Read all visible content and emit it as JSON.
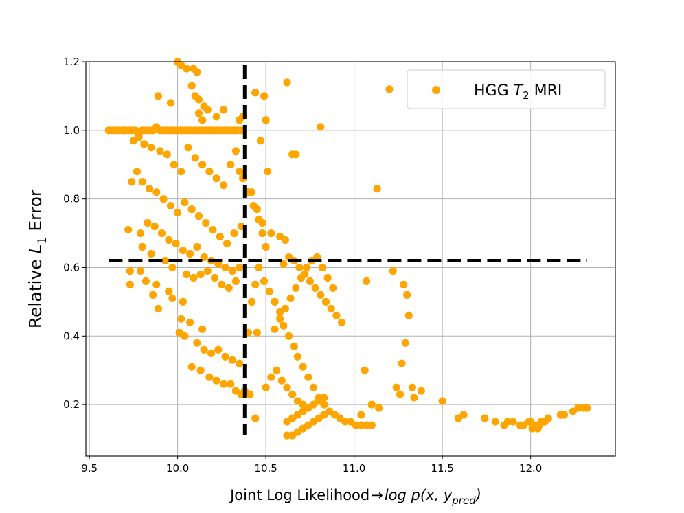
{
  "chart_data": {
    "type": "scatter",
    "xlabel_prefix": "Joint Log Likelihood",
    "xlabel_arrow": "→",
    "xlabel_expr": "log p(x, y",
    "xlabel_sub": "pred",
    "xlabel_close": ")",
    "ylabel_prefix": "Relative ",
    "ylabel_var": "L",
    "ylabel_sub": "1",
    "ylabel_suffix": " Error",
    "xlim": [
      9.48,
      12.48
    ],
    "ylim": [
      0.05,
      1.2
    ],
    "xticks": [
      "9.5",
      "10.0",
      "10.5",
      "11.0",
      "11.5",
      "12.0"
    ],
    "yticks": [
      "0.2",
      "0.4",
      "0.6",
      "0.8",
      "1.0",
      "1.2"
    ],
    "grid": true,
    "legend": {
      "label_prefix": "HGG ",
      "label_var": "T",
      "label_sub": "2",
      "label_suffix": " MRI",
      "location": "top-right"
    },
    "threshold_lines": [
      {
        "orientation": "vertical",
        "x": 10.38,
        "y_range": [
          0.11,
          1.19
        ]
      },
      {
        "orientation": "horizontal",
        "y": 0.62,
        "x_range": [
          9.61,
          12.32
        ]
      }
    ],
    "series": [
      {
        "name": "HGG T2 MRI",
        "color": "#FFA500",
        "points": [
          [
            9.61,
            1.0
          ],
          [
            9.63,
            1.0
          ],
          [
            9.65,
            1.0
          ],
          [
            9.67,
            1.0
          ],
          [
            9.69,
            1.0
          ],
          [
            9.7,
            1.0
          ],
          [
            9.72,
            1.0
          ],
          [
            9.74,
            1.0
          ],
          [
            9.76,
            1.0
          ],
          [
            9.78,
            0.99
          ],
          [
            9.8,
            1.0
          ],
          [
            9.82,
            1.0
          ],
          [
            9.84,
            1.0
          ],
          [
            9.86,
            1.0
          ],
          [
            9.88,
            1.01
          ],
          [
            9.9,
            1.0
          ],
          [
            9.92,
            1.0
          ],
          [
            9.94,
            1.0
          ],
          [
            9.96,
            1.0
          ],
          [
            9.98,
            1.0
          ],
          [
            10.0,
            1.0
          ],
          [
            10.02,
            1.0
          ],
          [
            10.04,
            1.0
          ],
          [
            10.06,
            1.0
          ],
          [
            10.08,
            1.0
          ],
          [
            10.1,
            1.0
          ],
          [
            10.12,
            1.0
          ],
          [
            10.14,
            1.0
          ],
          [
            10.16,
            1.0
          ],
          [
            10.18,
            1.0
          ],
          [
            10.2,
            1.0
          ],
          [
            10.22,
            1.0
          ],
          [
            10.24,
            1.0
          ],
          [
            10.26,
            1.0
          ],
          [
            10.28,
            1.0
          ],
          [
            10.3,
            1.0
          ],
          [
            10.32,
            1.0
          ],
          [
            10.34,
            1.0
          ],
          [
            10.36,
            1.0
          ],
          [
            10.0,
            1.2
          ],
          [
            10.02,
            1.19
          ],
          [
            10.05,
            1.18
          ],
          [
            10.09,
            1.18
          ],
          [
            10.11,
            1.17
          ],
          [
            10.08,
            1.13
          ],
          [
            10.1,
            1.1
          ],
          [
            10.12,
            1.09
          ],
          [
            10.15,
            1.07
          ],
          [
            10.12,
            1.05
          ],
          [
            10.14,
            1.03
          ],
          [
            10.17,
            1.06
          ],
          [
            10.22,
            1.04
          ],
          [
            10.26,
            1.06
          ],
          [
            10.35,
            1.03
          ],
          [
            10.37,
            1.04
          ],
          [
            10.44,
            1.11
          ],
          [
            10.49,
            1.1
          ],
          [
            10.62,
            1.14
          ],
          [
            10.5,
            1.03
          ],
          [
            10.47,
            0.97
          ],
          [
            10.51,
            0.88
          ],
          [
            10.65,
            0.93
          ],
          [
            9.89,
            1.1
          ],
          [
            9.96,
            1.08
          ],
          [
            9.78,
            0.98
          ],
          [
            9.75,
            0.97
          ],
          [
            9.81,
            0.96
          ],
          [
            9.85,
            0.95
          ],
          [
            9.9,
            0.94
          ],
          [
            9.94,
            0.93
          ],
          [
            9.98,
            0.9
          ],
          [
            10.02,
            0.88
          ],
          [
            10.06,
            0.95
          ],
          [
            10.1,
            0.92
          ],
          [
            10.14,
            0.9
          ],
          [
            10.18,
            0.88
          ],
          [
            10.22,
            0.86
          ],
          [
            10.26,
            0.84
          ],
          [
            10.3,
            0.9
          ],
          [
            10.33,
            0.94
          ],
          [
            10.35,
            0.88
          ],
          [
            10.37,
            0.86
          ],
          [
            10.4,
            0.82
          ],
          [
            10.43,
            0.78
          ],
          [
            10.46,
            0.74
          ],
          [
            10.48,
            0.7
          ],
          [
            10.5,
            0.66
          ],
          [
            9.74,
            0.85
          ],
          [
            9.77,
            0.88
          ],
          [
            9.8,
            0.85
          ],
          [
            9.84,
            0.83
          ],
          [
            9.88,
            0.82
          ],
          [
            9.92,
            0.8
          ],
          [
            9.96,
            0.78
          ],
          [
            10.0,
            0.76
          ],
          [
            10.04,
            0.79
          ],
          [
            10.08,
            0.77
          ],
          [
            10.12,
            0.75
          ],
          [
            10.16,
            0.73
          ],
          [
            10.2,
            0.71
          ],
          [
            10.24,
            0.69
          ],
          [
            10.28,
            0.67
          ],
          [
            10.32,
            0.7
          ],
          [
            10.36,
            0.72
          ],
          [
            9.72,
            0.71
          ],
          [
            9.79,
            0.7
          ],
          [
            9.83,
            0.73
          ],
          [
            9.87,
            0.72
          ],
          [
            9.91,
            0.7
          ],
          [
            9.95,
            0.68
          ],
          [
            9.99,
            0.67
          ],
          [
            10.03,
            0.65
          ],
          [
            10.07,
            0.64
          ],
          [
            10.11,
            0.66
          ],
          [
            10.15,
            0.63
          ],
          [
            10.19,
            0.62
          ],
          [
            10.23,
            0.61
          ],
          [
            10.27,
            0.6
          ],
          [
            10.31,
            0.59
          ],
          [
            10.35,
            0.6
          ],
          [
            9.8,
            0.66
          ],
          [
            9.85,
            0.64
          ],
          [
            9.93,
            0.62
          ],
          [
            9.97,
            0.6
          ],
          [
            10.05,
            0.58
          ],
          [
            10.09,
            0.57
          ],
          [
            10.13,
            0.58
          ],
          [
            10.17,
            0.59
          ],
          [
            10.21,
            0.57
          ],
          [
            10.25,
            0.55
          ],
          [
            10.29,
            0.54
          ],
          [
            10.33,
            0.56
          ],
          [
            9.73,
            0.59
          ],
          [
            9.79,
            0.59
          ],
          [
            9.73,
            0.55
          ],
          [
            9.82,
            0.56
          ],
          [
            9.88,
            0.55
          ],
          [
            9.95,
            0.53
          ],
          [
            9.86,
            0.52
          ],
          [
            9.97,
            0.51
          ],
          [
            10.03,
            0.5
          ],
          [
            9.89,
            0.48
          ],
          [
            10.02,
            0.45
          ],
          [
            10.07,
            0.44
          ],
          [
            10.14,
            0.42
          ],
          [
            10.01,
            0.41
          ],
          [
            10.04,
            0.4
          ],
          [
            10.11,
            0.38
          ],
          [
            10.15,
            0.36
          ],
          [
            10.19,
            0.35
          ],
          [
            10.23,
            0.36
          ],
          [
            10.27,
            0.34
          ],
          [
            10.31,
            0.33
          ],
          [
            10.35,
            0.32
          ],
          [
            10.08,
            0.31
          ],
          [
            10.13,
            0.3
          ],
          [
            10.18,
            0.28
          ],
          [
            10.22,
            0.27
          ],
          [
            10.26,
            0.26
          ],
          [
            10.3,
            0.26
          ],
          [
            10.33,
            0.24
          ],
          [
            10.36,
            0.23
          ],
          [
            10.38,
            0.24
          ],
          [
            10.41,
            0.23
          ],
          [
            10.44,
            0.16
          ],
          [
            10.4,
            0.41
          ],
          [
            10.45,
            0.41
          ],
          [
            10.42,
            0.5
          ],
          [
            10.44,
            0.55
          ],
          [
            10.46,
            0.6
          ],
          [
            10.49,
            0.56
          ],
          [
            10.52,
            0.53
          ],
          [
            10.55,
            0.5
          ],
          [
            10.58,
            0.47
          ],
          [
            10.6,
            0.43
          ],
          [
            10.63,
            0.4
          ],
          [
            10.66,
            0.37
          ],
          [
            10.68,
            0.34
          ],
          [
            10.71,
            0.31
          ],
          [
            10.74,
            0.28
          ],
          [
            10.77,
            0.25
          ],
          [
            10.8,
            0.22
          ],
          [
            10.83,
            0.2
          ],
          [
            10.86,
            0.18
          ],
          [
            10.89,
            0.17
          ],
          [
            10.92,
            0.16
          ],
          [
            10.95,
            0.15
          ],
          [
            10.98,
            0.15
          ],
          [
            11.01,
            0.14
          ],
          [
            11.04,
            0.14
          ],
          [
            11.07,
            0.14
          ],
          [
            11.1,
            0.14
          ],
          [
            10.62,
            0.11
          ],
          [
            10.65,
            0.11
          ],
          [
            10.68,
            0.12
          ],
          [
            10.71,
            0.13
          ],
          [
            10.74,
            0.14
          ],
          [
            10.77,
            0.15
          ],
          [
            10.8,
            0.16
          ],
          [
            10.83,
            0.17
          ],
          [
            10.86,
            0.18
          ],
          [
            10.62,
            0.15
          ],
          [
            10.65,
            0.16
          ],
          [
            10.68,
            0.17
          ],
          [
            10.71,
            0.18
          ],
          [
            10.74,
            0.19
          ],
          [
            10.77,
            0.2
          ],
          [
            10.8,
            0.21
          ],
          [
            10.83,
            0.22
          ],
          [
            10.5,
            0.25
          ],
          [
            10.53,
            0.28
          ],
          [
            10.56,
            0.3
          ],
          [
            10.59,
            0.27
          ],
          [
            10.62,
            0.25
          ],
          [
            10.65,
            0.23
          ],
          [
            10.68,
            0.21
          ],
          [
            10.71,
            0.2
          ],
          [
            10.74,
            0.19
          ],
          [
            10.55,
            0.42
          ],
          [
            10.58,
            0.45
          ],
          [
            10.61,
            0.48
          ],
          [
            10.64,
            0.51
          ],
          [
            10.67,
            0.54
          ],
          [
            10.7,
            0.57
          ],
          [
            10.73,
            0.6
          ],
          [
            10.76,
            0.62
          ],
          [
            10.79,
            0.63
          ],
          [
            10.82,
            0.6
          ],
          [
            10.85,
            0.57
          ],
          [
            10.88,
            0.54
          ],
          [
            10.6,
            0.61
          ],
          [
            10.63,
            0.63
          ],
          [
            10.66,
            0.62
          ],
          [
            10.69,
            0.6
          ],
          [
            10.72,
            0.58
          ],
          [
            10.75,
            0.56
          ],
          [
            10.78,
            0.54
          ],
          [
            10.81,
            0.52
          ],
          [
            10.84,
            0.5
          ],
          [
            10.87,
            0.48
          ],
          [
            10.9,
            0.46
          ],
          [
            10.93,
            0.44
          ],
          [
            10.42,
            0.82
          ],
          [
            10.45,
            0.77
          ],
          [
            10.48,
            0.73
          ],
          [
            10.53,
            0.7
          ],
          [
            10.58,
            0.69
          ],
          [
            10.61,
            0.68
          ],
          [
            10.67,
            0.93
          ],
          [
            10.81,
            1.01
          ],
          [
            11.13,
            0.83
          ],
          [
            11.07,
            0.56
          ],
          [
            11.06,
            0.3
          ],
          [
            11.04,
            0.17
          ],
          [
            11.1,
            0.2
          ],
          [
            11.14,
            0.19
          ],
          [
            11.2,
            1.12
          ],
          [
            11.22,
            0.59
          ],
          [
            11.24,
            0.25
          ],
          [
            11.26,
            0.23
          ],
          [
            11.28,
            0.55
          ],
          [
            11.3,
            0.52
          ],
          [
            11.31,
            0.46
          ],
          [
            11.29,
            0.38
          ],
          [
            11.27,
            0.32
          ],
          [
            11.33,
            0.25
          ],
          [
            11.34,
            0.22
          ],
          [
            11.38,
            0.24
          ],
          [
            11.5,
            0.21
          ],
          [
            11.59,
            0.16
          ],
          [
            11.62,
            0.17
          ],
          [
            11.74,
            0.16
          ],
          [
            11.8,
            0.15
          ],
          [
            11.85,
            0.14
          ],
          [
            11.87,
            0.15
          ],
          [
            11.9,
            0.15
          ],
          [
            11.94,
            0.14
          ],
          [
            11.96,
            0.14
          ],
          [
            11.99,
            0.15
          ],
          [
            12.01,
            0.13
          ],
          [
            12.03,
            0.14
          ],
          [
            12.05,
            0.14
          ],
          [
            12.08,
            0.15
          ],
          [
            12.1,
            0.16
          ],
          [
            12.17,
            0.17
          ],
          [
            12.19,
            0.17
          ],
          [
            12.24,
            0.18
          ],
          [
            12.27,
            0.19
          ],
          [
            12.3,
            0.19
          ],
          [
            12.32,
            0.19
          ],
          [
            12.0,
            0.15
          ],
          [
            12.04,
            0.13
          ],
          [
            12.06,
            0.15
          ]
        ]
      }
    ]
  }
}
